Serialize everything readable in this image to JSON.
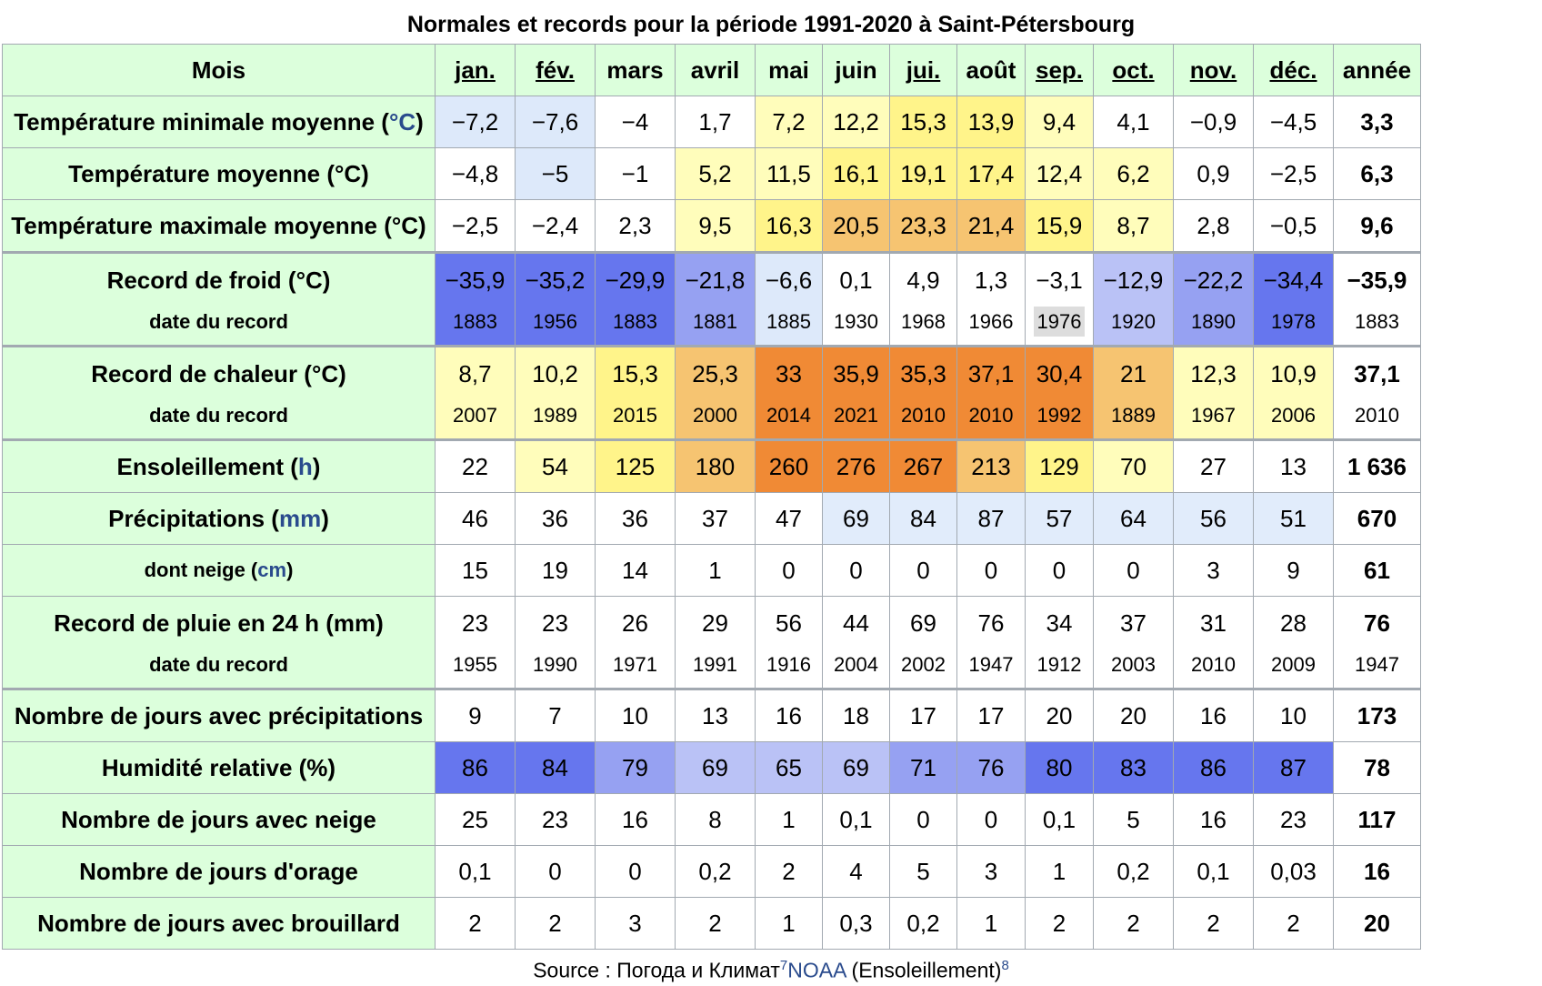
{
  "caption": "Normales et records pour la période 1991-2020 à Saint-Pétersbourg",
  "colors": {
    "header_green": "#dcffdc",
    "link_blue": "#2a4b8d",
    "border": "#a2a9b1"
  },
  "header": {
    "label": "Mois",
    "months": [
      "jan.",
      "fév.",
      "mars",
      "avril",
      "mai",
      "juin",
      "jui.",
      "août",
      "sep.",
      "oct.",
      "nov.",
      "déc."
    ],
    "months_linked": [
      true,
      true,
      false,
      false,
      false,
      false,
      true,
      false,
      true,
      true,
      true,
      true
    ],
    "year": "année"
  },
  "rows": [
    {
      "label": "Température minimale moyenne (",
      "unit": "°C",
      "suffix": ")",
      "unit_link": true,
      "values": [
        "−7,2",
        "−7,6",
        "−4",
        "1,7",
        "7,2",
        "12,2",
        "15,3",
        "13,9",
        "9,4",
        "4,1",
        "−0,9",
        "−4,5"
      ],
      "colors": [
        "#dde9fa",
        "#dde9fa",
        "#ffffff",
        "#ffffff",
        "#fffdbb",
        "#fffdbb",
        "#fff48a",
        "#fff48a",
        "#fffdbb",
        "#ffffff",
        "#ffffff",
        "#ffffff"
      ],
      "year": "3,3"
    },
    {
      "label": "Température moyenne (°C)",
      "unit": "",
      "suffix": "",
      "unit_link": false,
      "values": [
        "−4,8",
        "−5",
        "−1",
        "5,2",
        "11,5",
        "16,1",
        "19,1",
        "17,4",
        "12,4",
        "6,2",
        "0,9",
        "−2,5"
      ],
      "colors": [
        "#ffffff",
        "#dde9fa",
        "#ffffff",
        "#fffdbb",
        "#fffdbb",
        "#fff48a",
        "#fff48a",
        "#fff48a",
        "#fffdbb",
        "#fffdbb",
        "#ffffff",
        "#ffffff"
      ],
      "year": "6,3"
    },
    {
      "label": "Température maximale moyenne (°C)",
      "unit": "",
      "suffix": "",
      "unit_link": false,
      "values": [
        "−2,5",
        "−2,4",
        "2,3",
        "9,5",
        "16,3",
        "20,5",
        "23,3",
        "21,4",
        "15,9",
        "8,7",
        "2,8",
        "−0,5"
      ],
      "colors": [
        "#ffffff",
        "#ffffff",
        "#ffffff",
        "#fffdbb",
        "#fff48a",
        "#f6c471",
        "#f6c471",
        "#f6c471",
        "#fff48a",
        "#fffdbb",
        "#ffffff",
        "#ffffff"
      ],
      "year": "9,6"
    },
    {
      "label": "Record de froid (°C)",
      "sublabel": "date du record",
      "double": true,
      "thick": true,
      "values": [
        "−35,9",
        "−35,2",
        "−29,9",
        "−21,8",
        "−6,6",
        "0,1",
        "4,9",
        "1,3",
        "−3,1",
        "−12,9",
        "−22,2",
        "−34,4"
      ],
      "dates": [
        "1883",
        "1956",
        "1883",
        "1881",
        "1885",
        "1930",
        "1968",
        "1966",
        "1976",
        "1920",
        "1890",
        "1978"
      ],
      "colors": [
        "#6676ee",
        "#6676ee",
        "#6676ee",
        "#96a1f2",
        "#dde9fa",
        "#ffffff",
        "#ffffff",
        "#ffffff",
        "#ffffff",
        "#bac2f6",
        "#96a1f2",
        "#6676ee"
      ],
      "year": "−35,9",
      "year_date": "1883"
    },
    {
      "label": "Record de chaleur (°C)",
      "sublabel": "date du record",
      "double": true,
      "thick": true,
      "values": [
        "8,7",
        "10,2",
        "15,3",
        "25,3",
        "33",
        "35,9",
        "35,3",
        "37,1",
        "30,4",
        "21",
        "12,3",
        "10,9"
      ],
      "dates": [
        "2007",
        "1989",
        "2015",
        "2000",
        "2014",
        "2021",
        "2010",
        "2010",
        "1992",
        "1889",
        "1967",
        "2006"
      ],
      "colors": [
        "#fffdbb",
        "#fffdbb",
        "#fff48a",
        "#f6c471",
        "#f08a35",
        "#f08a35",
        "#f08a35",
        "#f08a35",
        "#f08a35",
        "#f6c471",
        "#fffdbb",
        "#fffdbb"
      ],
      "year": "37,1",
      "year_date": "2010"
    },
    {
      "label": "Ensoleillement (",
      "unit": "h",
      "suffix": ")",
      "unit_link": true,
      "thick": true,
      "values": [
        "22",
        "54",
        "125",
        "180",
        "260",
        "276",
        "267",
        "213",
        "129",
        "70",
        "27",
        "13"
      ],
      "colors": [
        "#ffffff",
        "#fffdbb",
        "#fff48a",
        "#f6c471",
        "#f08a35",
        "#f08a35",
        "#f08a35",
        "#f6c471",
        "#fff48a",
        "#fffdbb",
        "#ffffff",
        "#ffffff"
      ],
      "year": "1 636"
    },
    {
      "label": "Précipitations (",
      "unit": "mm",
      "suffix": ")",
      "unit_link": true,
      "values": [
        "46",
        "36",
        "36",
        "37",
        "47",
        "69",
        "84",
        "87",
        "57",
        "64",
        "56",
        "51"
      ],
      "colors": [
        "#ffffff",
        "#ffffff",
        "#ffffff",
        "#ffffff",
        "#ffffff",
        "#e1ecfb",
        "#e1ecfb",
        "#e1ecfb",
        "#e1ecfb",
        "#e1ecfb",
        "#e1ecfb",
        "#e1ecfb"
      ],
      "year": "670"
    },
    {
      "label": "dont neige (",
      "unit": "cm",
      "suffix": ")",
      "unit_link": true,
      "small": true,
      "values": [
        "15",
        "19",
        "14",
        "1",
        "0",
        "0",
        "0",
        "0",
        "0",
        "0",
        "3",
        "9"
      ],
      "colors": [
        "#ffffff",
        "#ffffff",
        "#ffffff",
        "#ffffff",
        "#ffffff",
        "#ffffff",
        "#ffffff",
        "#ffffff",
        "#ffffff",
        "#ffffff",
        "#ffffff",
        "#ffffff"
      ],
      "year": "61"
    },
    {
      "label": "Record de pluie en 24 h (mm)",
      "sublabel": "date du record",
      "double": true,
      "values": [
        "23",
        "23",
        "26",
        "29",
        "56",
        "44",
        "69",
        "76",
        "34",
        "37",
        "31",
        "28"
      ],
      "dates": [
        "1955",
        "1990",
        "1971",
        "1991",
        "1916",
        "2004",
        "2002",
        "1947",
        "1912",
        "2003",
        "2010",
        "2009"
      ],
      "colors": [
        "#ffffff",
        "#ffffff",
        "#ffffff",
        "#ffffff",
        "#ffffff",
        "#ffffff",
        "#ffffff",
        "#ffffff",
        "#ffffff",
        "#ffffff",
        "#ffffff",
        "#ffffff"
      ],
      "year": "76",
      "year_date": "1947"
    },
    {
      "label": "Nombre de jours avec précipitations",
      "thick": true,
      "values": [
        "9",
        "7",
        "10",
        "13",
        "16",
        "18",
        "17",
        "17",
        "20",
        "20",
        "16",
        "10"
      ],
      "colors": [
        "#ffffff",
        "#ffffff",
        "#ffffff",
        "#ffffff",
        "#ffffff",
        "#ffffff",
        "#ffffff",
        "#ffffff",
        "#ffffff",
        "#ffffff",
        "#ffffff",
        "#ffffff"
      ],
      "year": "173"
    },
    {
      "label": "Humidité relative (%)",
      "values": [
        "86",
        "84",
        "79",
        "69",
        "65",
        "69",
        "71",
        "76",
        "80",
        "83",
        "86",
        "87"
      ],
      "colors": [
        "#6676ee",
        "#6676ee",
        "#96a1f2",
        "#bac2f6",
        "#bac2f6",
        "#bac2f6",
        "#96a1f2",
        "#96a1f2",
        "#6676ee",
        "#6676ee",
        "#6676ee",
        "#6676ee"
      ],
      "year": "78"
    },
    {
      "label": "Nombre de jours avec neige",
      "values": [
        "25",
        "23",
        "16",
        "8",
        "1",
        "0,1",
        "0",
        "0",
        "0,1",
        "5",
        "16",
        "23"
      ],
      "colors": [
        "#ffffff",
        "#ffffff",
        "#ffffff",
        "#ffffff",
        "#ffffff",
        "#ffffff",
        "#ffffff",
        "#ffffff",
        "#ffffff",
        "#ffffff",
        "#ffffff",
        "#ffffff"
      ],
      "year": "117"
    },
    {
      "label": "Nombre de jours d'orage",
      "values": [
        "0,1",
        "0",
        "0",
        "0,2",
        "2",
        "4",
        "5",
        "3",
        "1",
        "0,2",
        "0,1",
        "0,03"
      ],
      "colors": [
        "#ffffff",
        "#ffffff",
        "#ffffff",
        "#ffffff",
        "#ffffff",
        "#ffffff",
        "#ffffff",
        "#ffffff",
        "#ffffff",
        "#ffffff",
        "#ffffff",
        "#ffffff"
      ],
      "year": "16"
    },
    {
      "label": "Nombre de jours avec brouillard",
      "values": [
        "2",
        "2",
        "3",
        "2",
        "1",
        "0,3",
        "0,2",
        "1",
        "2",
        "2",
        "2",
        "2"
      ],
      "colors": [
        "#ffffff",
        "#ffffff",
        "#ffffff",
        "#ffffff",
        "#ffffff",
        "#ffffff",
        "#ffffff",
        "#ffffff",
        "#ffffff",
        "#ffffff",
        "#ffffff",
        "#ffffff"
      ],
      "year": "20"
    }
  ],
  "source": {
    "prefix": "Source : Погода и Климат",
    "ref1": "7",
    "noaa": "NOAA",
    "suffix": " (Ensoleillement)",
    "ref2": "8"
  }
}
